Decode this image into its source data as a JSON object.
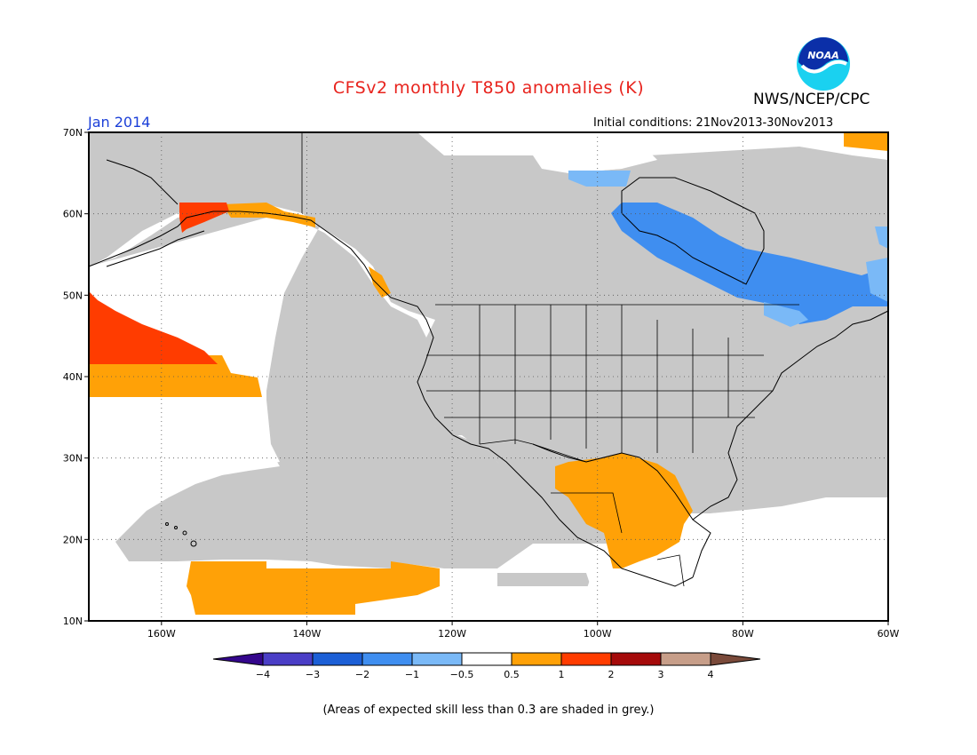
{
  "title": "CFSv2 monthly T850 anomalies (K)",
  "organization": "NWS/NCEP/CPC",
  "logo_text": "NOAA",
  "valid_month": "Jan 2014",
  "initial_conditions": "Initial conditions: 21Nov2013-30Nov2013",
  "lat_labels": [
    "70N",
    "60N",
    "50N",
    "40N",
    "30N",
    "20N",
    "10N"
  ],
  "lon_labels": [
    "160W",
    "140W",
    "120W",
    "100W",
    "80W",
    "60W"
  ],
  "colorbar": {
    "tick_labels": [
      "−4",
      "−3",
      "−2",
      "−1",
      "−0.5",
      "0.5",
      "1",
      "2",
      "3",
      "4"
    ],
    "bins": [
      {
        "range": "< -4",
        "color": "#34068c"
      },
      {
        "range": "-4 to -3",
        "color": "#4a3ec6"
      },
      {
        "range": "-3 to -2",
        "color": "#1c5fd6"
      },
      {
        "range": "-2 to -1",
        "color": "#3f8ef0"
      },
      {
        "range": "-1 to -0.5",
        "color": "#7ab9f7"
      },
      {
        "range": "-0.5 to 0.5",
        "color": "#ffffff"
      },
      {
        "range": "0.5 to 1",
        "color": "#ffa107"
      },
      {
        "range": "1 to 2",
        "color": "#ff3c00"
      },
      {
        "range": "2 to 3",
        "color": "#a50a0a"
      },
      {
        "range": "3 to 4",
        "color": "#c79e89"
      },
      {
        "range": "> 4",
        "color": "#7a4a3a"
      }
    ]
  },
  "skill_note": "(Areas of expected skill less than 0.3 are shaded in grey.)",
  "map_colors": {
    "grey": "#c8c8c8",
    "orange": "#ffa107",
    "red": "#ff3c00",
    "blue": "#3f8ef0",
    "lightblue": "#7ab9f7"
  }
}
